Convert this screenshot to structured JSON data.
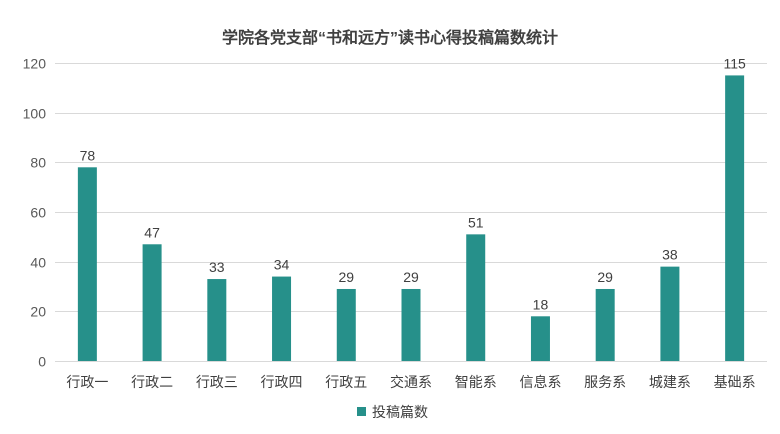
{
  "chart_data": {
    "type": "bar",
    "title": "学院各党支部“书和远方”读书心得投稿篇数统计",
    "categories": [
      "行政一",
      "行政二",
      "行政三",
      "行政四",
      "行政五",
      "交通系",
      "智能系",
      "信息系",
      "服务系",
      "城建系",
      "基础系"
    ],
    "series": [
      {
        "name": "投稿篇数",
        "values": [
          78,
          47,
          33,
          34,
          29,
          29,
          51,
          18,
          29,
          38,
          115
        ],
        "color": "#26908A"
      }
    ],
    "ylim": [
      0,
      120
    ],
    "yticks": [
      0,
      20,
      40,
      60,
      80,
      100,
      120
    ],
    "grid": true,
    "legend": "bottom",
    "data_labels": true
  }
}
